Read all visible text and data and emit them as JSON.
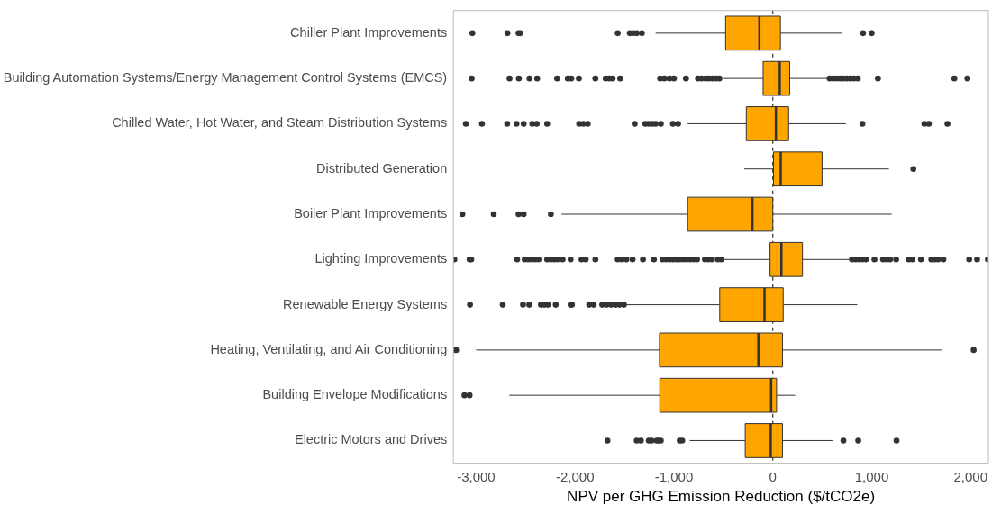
{
  "chart_data": {
    "type": "box",
    "orientation": "horizontal",
    "xlabel": "NPV per GHG Emission Reduction ($/tCO2e)",
    "color": "#ffa500",
    "grid": false,
    "categories": [
      "Chiller Plant Improvements",
      "Building Automation Systems/Energy Management Control Systems (EMCS)",
      "Chilled Water, Hot Water, and Steam Distribution Systems",
      "Distributed Generation",
      "Boiler Plant Improvements",
      "Lighting Improvements",
      "Renewable Energy Systems",
      "Heating, Ventilating, and Air Conditioning",
      "Building Envelope Modifications",
      "Electric Motors and Drives"
    ],
    "xlim": [
      -3230,
      2180
    ],
    "xticks": [
      {
        "value": -3000,
        "label": "-3,000"
      },
      {
        "value": -2000,
        "label": "-2,000"
      },
      {
        "value": -1000,
        "label": "-1,000"
      },
      0,
      {
        "value": 1000,
        "label": "1,000"
      },
      {
        "value": 2000,
        "label": "2,000"
      }
    ],
    "ref_lines": [
      {
        "axis": "x",
        "value": 0,
        "line_style": "dashed",
        "color": "#333333"
      }
    ],
    "boxes": [
      {
        "low": -1185,
        "q1": -477,
        "median": -136,
        "q3": 77,
        "high": 697,
        "outliers": [
          -3038,
          -2683,
          -2571,
          -2554,
          -1568,
          -1446,
          -1411,
          -1376,
          -1324,
          913,
          1000
        ]
      },
      {
        "low": -505,
        "q1": -98,
        "median": 70,
        "q3": 171,
        "high": 557,
        "outliers": [
          -3045,
          -2662,
          -2568,
          -2460,
          -2383,
          -2181,
          -2073,
          -2038,
          -1961,
          -1794,
          -1690,
          -1655,
          -1620,
          -1543,
          -1139,
          -1097,
          -1045,
          -1000,
          -878,
          -756,
          -721,
          -679,
          -645,
          -610,
          -575,
          -540,
          575,
          610,
          645,
          679,
          714,
          749,
          784,
          819,
          860,
          1063,
          1836,
          1968
        ]
      },
      {
        "low": -861,
        "q1": -268,
        "median": 31,
        "q3": 160,
        "high": 739,
        "outliers": [
          -3104,
          -2941,
          -2686,
          -2592,
          -2519,
          -2432,
          -2387,
          -2282,
          -1958,
          -1916,
          -1871,
          -1397,
          -1289,
          -1254,
          -1219,
          -1185,
          -1132,
          -1010,
          -958,
          906,
          1533,
          1578,
          1766
        ]
      },
      {
        "low": -289,
        "q1": 7,
        "median": 80,
        "q3": 498,
        "high": 1174,
        "outliers": [
          1421
        ]
      },
      {
        "low": -2136,
        "q1": -861,
        "median": -206,
        "q3": 0,
        "high": 1202,
        "outliers": [
          -3139,
          -2822,
          -2571,
          -2519,
          -2244
        ]
      },
      {
        "low": -523,
        "q1": -28,
        "median": 87,
        "q3": 300,
        "high": 801,
        "outliers": [
          -3220,
          -3066,
          -3049,
          -2585,
          -2509,
          -2474,
          -2439,
          -2404,
          -2369,
          -2282,
          -2247,
          -2212,
          -2178,
          -2125,
          -2045,
          -1934,
          -1892,
          -1794,
          -1568,
          -1526,
          -1481,
          -1418,
          -1313,
          -1202,
          -1115,
          -1080,
          -1045,
          -1010,
          -975,
          -941,
          -906,
          -871,
          -836,
          -801,
          -766,
          -686,
          -651,
          -617,
          -557,
          -523,
          801,
          836,
          871,
          906,
          941,
          1028,
          1115,
          1150,
          1185,
          1247,
          1376,
          1411,
          1498,
          1603,
          1637,
          1672,
          1725,
          1986,
          2066,
          2175
        ]
      },
      {
        "low": -1481,
        "q1": -537,
        "median": -84,
        "q3": 105,
        "high": 854,
        "outliers": [
          -3062,
          -2731,
          -2526,
          -2463,
          -2345,
          -2310,
          -2275,
          -2195,
          -2045,
          -2031,
          -1857,
          -1812,
          -1725,
          -1679,
          -1634,
          -1589,
          -1550,
          -1505
        ]
      },
      {
        "low": -3000,
        "q1": -1146,
        "median": -146,
        "q3": 98,
        "high": 1707,
        "outliers": [
          -3223,
          -3202,
          2031
        ]
      },
      {
        "low": -2665,
        "q1": -1143,
        "median": -17,
        "q3": 38,
        "high": 226,
        "outliers": [
          -3118,
          -3066
        ]
      },
      {
        "low": -840,
        "q1": -279,
        "median": -21,
        "q3": 98,
        "high": 603,
        "outliers": [
          -1672,
          -1376,
          -1334,
          -1254,
          -1226,
          -1174,
          -1157,
          -1132,
          -941,
          -916,
          714,
          864,
          1251
        ]
      }
    ]
  }
}
